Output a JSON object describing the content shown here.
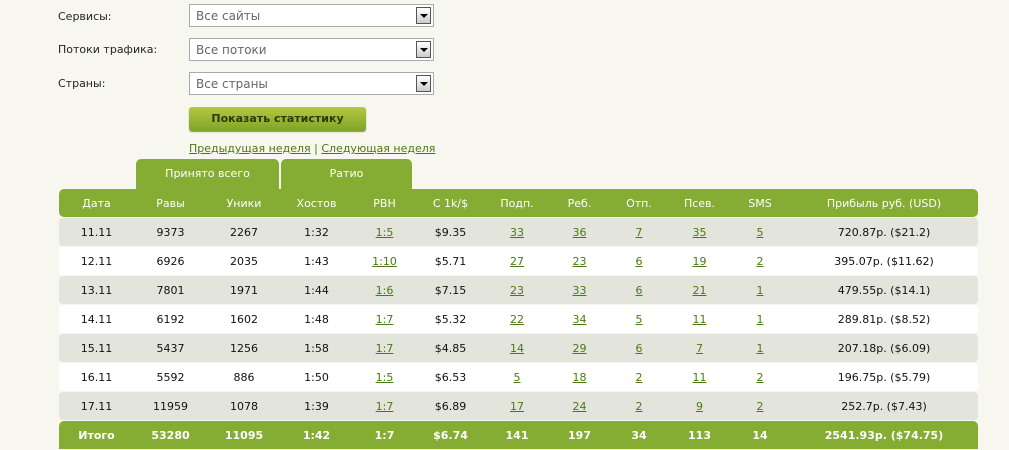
{
  "filters": [
    {
      "label": "Сервисы:",
      "value": "Все сайты"
    },
    {
      "label": "Потоки трафика:",
      "value": "Все потоки"
    },
    {
      "label": "Страны:",
      "value": "Все страны"
    }
  ],
  "show_button": "Показать статистику",
  "nav": {
    "prev": "Предыдущая неделя",
    "sep": "|",
    "next": "Следующая неделя"
  },
  "tabs": [
    "Принято всего",
    "Ратио"
  ],
  "colors": {
    "accent": "#85ad34",
    "row_alt": "#e3e5dc",
    "link": "#4a7a10"
  },
  "table": {
    "headers": [
      "Дата",
      "Равы",
      "Уники",
      "Хостов",
      "РВН",
      "С 1k/$",
      "Подп.",
      "Реб.",
      "Отп.",
      "Псев.",
      "SMS",
      "Прибыль руб. (USD)"
    ],
    "rows": [
      [
        "11.11",
        "9373",
        "2267",
        "1:32",
        "1:5",
        "$9.35",
        "33",
        "36",
        "7",
        "35",
        "5",
        "720.87р. ($21.2)"
      ],
      [
        "12.11",
        "6926",
        "2035",
        "1:43",
        "1:10",
        "$5.71",
        "27",
        "23",
        "6",
        "19",
        "2",
        "395.07р. ($11.62)"
      ],
      [
        "13.11",
        "7801",
        "1971",
        "1:44",
        "1:6",
        "$7.15",
        "23",
        "33",
        "6",
        "21",
        "1",
        "479.55р. ($14.1)"
      ],
      [
        "14.11",
        "6192",
        "1602",
        "1:48",
        "1:7",
        "$5.32",
        "22",
        "34",
        "5",
        "11",
        "1",
        "289.81р. ($8.52)"
      ],
      [
        "15.11",
        "5437",
        "1256",
        "1:58",
        "1:7",
        "$4.85",
        "14",
        "29",
        "6",
        "7",
        "1",
        "207.18р. ($6.09)"
      ],
      [
        "16.11",
        "5592",
        "886",
        "1:50",
        "1:5",
        "$6.53",
        "5",
        "18",
        "2",
        "11",
        "2",
        "196.75р. ($5.79)"
      ],
      [
        "17.11",
        "11959",
        "1078",
        "1:39",
        "1:7",
        "$6.89",
        "17",
        "24",
        "2",
        "9",
        "2",
        "252.7р. ($7.43)"
      ]
    ],
    "total": [
      "Итого",
      "53280",
      "11095",
      "1:42",
      "1:7",
      "$6.74",
      "141",
      "197",
      "34",
      "113",
      "14",
      "2541.93р. ($74.75)"
    ]
  }
}
